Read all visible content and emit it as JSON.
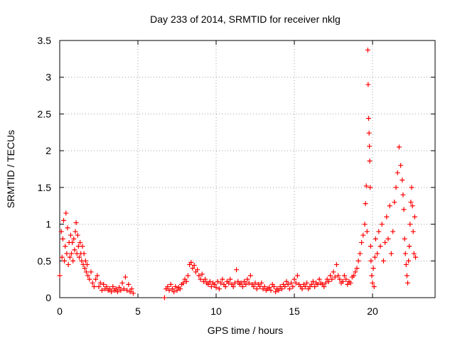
{
  "chart_data": {
    "type": "scatter",
    "title": "Day 233 of 2014, SRMTID for receiver nklg",
    "xlabel": "GPS time / hours",
    "ylabel": "SRMTID / TECUs",
    "xlim": [
      0,
      24
    ],
    "ylim": [
      0,
      3.5
    ],
    "xticks": [
      0,
      5,
      10,
      15,
      20
    ],
    "xtick_labels": [
      "0",
      "5",
      "10",
      "15",
      "20"
    ],
    "yticks": [
      0,
      0.5,
      1,
      1.5,
      2,
      2.5,
      3,
      3.5
    ],
    "ytick_labels": [
      "0",
      "0.5",
      "1",
      "1.5",
      "2",
      "2.5",
      "3",
      "3.5"
    ],
    "grid": true,
    "marker": "+",
    "point_color": "#ff0000",
    "series": [
      {
        "name": "SRMTID",
        "x": [
          0.0,
          0.1,
          0.15,
          0.2,
          0.25,
          0.3,
          0.35,
          0.4,
          0.45,
          0.5,
          0.55,
          0.6,
          0.65,
          0.7,
          0.75,
          0.8,
          0.85,
          0.9,
          0.95,
          1.0,
          1.05,
          1.1,
          1.15,
          1.2,
          1.25,
          1.3,
          1.35,
          1.4,
          1.45,
          1.5,
          1.55,
          1.6,
          1.65,
          1.7,
          1.75,
          1.8,
          1.9,
          2.0,
          2.1,
          2.2,
          2.3,
          2.4,
          2.5,
          2.6,
          2.7,
          2.8,
          2.9,
          3.0,
          3.1,
          3.2,
          3.3,
          3.4,
          3.5,
          3.6,
          3.7,
          3.8,
          3.9,
          4.0,
          4.1,
          4.2,
          4.3,
          4.4,
          4.5,
          4.6,
          4.7,
          6.7,
          6.8,
          6.9,
          7.0,
          7.1,
          7.2,
          7.3,
          7.4,
          7.5,
          7.6,
          7.7,
          7.8,
          7.9,
          8.0,
          8.1,
          8.2,
          8.3,
          8.4,
          8.5,
          8.6,
          8.7,
          8.8,
          8.9,
          9.0,
          9.1,
          9.2,
          9.3,
          9.4,
          9.5,
          9.6,
          9.7,
          9.8,
          9.9,
          10.0,
          10.1,
          10.2,
          10.3,
          10.4,
          10.5,
          10.6,
          10.7,
          10.8,
          10.9,
          11.0,
          11.1,
          11.2,
          11.3,
          11.4,
          11.5,
          11.6,
          11.7,
          11.8,
          11.9,
          12.0,
          12.1,
          12.2,
          12.3,
          12.4,
          12.5,
          12.6,
          12.7,
          12.8,
          12.9,
          13.0,
          13.1,
          13.2,
          13.3,
          13.4,
          13.5,
          13.6,
          13.7,
          13.8,
          13.9,
          14.0,
          14.1,
          14.2,
          14.3,
          14.4,
          14.5,
          14.6,
          14.7,
          14.8,
          14.9,
          15.0,
          15.1,
          15.2,
          15.3,
          15.4,
          15.5,
          15.6,
          15.7,
          15.8,
          15.9,
          16.0,
          16.1,
          16.2,
          16.3,
          16.4,
          16.5,
          16.6,
          16.7,
          16.8,
          16.9,
          17.0,
          17.1,
          17.2,
          17.3,
          17.4,
          17.5,
          17.6,
          17.7,
          17.8,
          17.9,
          18.0,
          18.1,
          18.2,
          18.3,
          18.4,
          18.5,
          18.6,
          18.7,
          18.8,
          18.9,
          19.0,
          19.1,
          19.2,
          19.3,
          19.4,
          19.5,
          19.55,
          19.6,
          19.65,
          19.7,
          19.72,
          19.75,
          19.78,
          19.8,
          19.82,
          19.85,
          19.88,
          19.9,
          19.95,
          20.0,
          20.05,
          20.1,
          20.15,
          20.2,
          20.3,
          20.4,
          20.5,
          20.6,
          20.7,
          20.8,
          20.9,
          21.0,
          21.1,
          21.2,
          21.3,
          21.4,
          21.5,
          21.6,
          21.7,
          21.8,
          21.9,
          21.95,
          22.0,
          22.05,
          22.1,
          22.15,
          22.2,
          22.25,
          22.3,
          22.35,
          22.4,
          22.45,
          22.5,
          22.55,
          22.6,
          22.65,
          22.7,
          22.75
        ],
        "y": [
          0.3,
          0.9,
          0.55,
          0.8,
          1.05,
          0.5,
          0.7,
          1.15,
          0.6,
          0.95,
          0.45,
          0.75,
          0.55,
          0.85,
          0.6,
          0.75,
          0.5,
          0.8,
          0.65,
          0.9,
          1.02,
          0.6,
          0.85,
          0.7,
          0.55,
          0.75,
          0.6,
          0.5,
          0.7,
          0.45,
          0.6,
          0.4,
          0.5,
          0.35,
          0.45,
          0.3,
          0.25,
          0.35,
          0.2,
          0.15,
          0.25,
          0.3,
          0.15,
          0.2,
          0.1,
          0.18,
          0.12,
          0.15,
          0.1,
          0.12,
          0.08,
          0.15,
          0.1,
          0.12,
          0.08,
          0.14,
          0.1,
          0.2,
          0.12,
          0.28,
          0.1,
          0.18,
          0.08,
          0.12,
          0.06,
          0.0,
          0.12,
          0.15,
          0.1,
          0.18,
          0.12,
          0.08,
          0.15,
          0.1,
          0.14,
          0.12,
          0.18,
          0.2,
          0.25,
          0.22,
          0.3,
          0.45,
          0.48,
          0.4,
          0.44,
          0.35,
          0.38,
          0.3,
          0.25,
          0.32,
          0.22,
          0.25,
          0.2,
          0.18,
          0.22,
          0.15,
          0.2,
          0.18,
          0.14,
          0.22,
          0.12,
          0.2,
          0.25,
          0.18,
          0.15,
          0.22,
          0.2,
          0.25,
          0.18,
          0.15,
          0.2,
          0.38,
          0.22,
          0.18,
          0.2,
          0.15,
          0.22,
          0.18,
          0.25,
          0.2,
          0.3,
          0.18,
          0.15,
          0.2,
          0.12,
          0.18,
          0.15,
          0.2,
          0.12,
          0.15,
          0.1,
          0.12,
          0.14,
          0.1,
          0.18,
          0.15,
          0.08,
          0.12,
          0.1,
          0.15,
          0.12,
          0.18,
          0.15,
          0.22,
          0.18,
          0.12,
          0.2,
          0.15,
          0.25,
          0.2,
          0.3,
          0.18,
          0.15,
          0.12,
          0.18,
          0.15,
          0.2,
          0.12,
          0.15,
          0.18,
          0.22,
          0.15,
          0.2,
          0.18,
          0.25,
          0.2,
          0.18,
          0.15,
          0.2,
          0.25,
          0.22,
          0.3,
          0.25,
          0.35,
          0.28,
          0.45,
          0.3,
          0.25,
          0.2,
          0.22,
          0.3,
          0.25,
          0.18,
          0.22,
          0.2,
          0.28,
          0.3,
          0.35,
          0.4,
          0.5,
          0.6,
          0.75,
          0.85,
          1.0,
          1.28,
          1.52,
          0.9,
          3.37,
          2.9,
          2.44,
          2.24,
          2.06,
          1.86,
          1.5,
          0.7,
          0.5,
          0.3,
          0.2,
          0.4,
          0.15,
          0.55,
          0.8,
          0.6,
          0.9,
          0.7,
          1.0,
          0.5,
          0.75,
          1.1,
          0.8,
          1.25,
          0.6,
          0.9,
          1.3,
          1.5,
          1.7,
          2.05,
          1.8,
          1.6,
          1.4,
          1.2,
          0.8,
          0.6,
          0.45,
          0.3,
          0.2,
          0.5,
          0.7,
          1.0,
          1.3,
          1.5,
          1.25,
          0.9,
          0.6,
          1.1,
          0.55
        ]
      }
    ]
  }
}
